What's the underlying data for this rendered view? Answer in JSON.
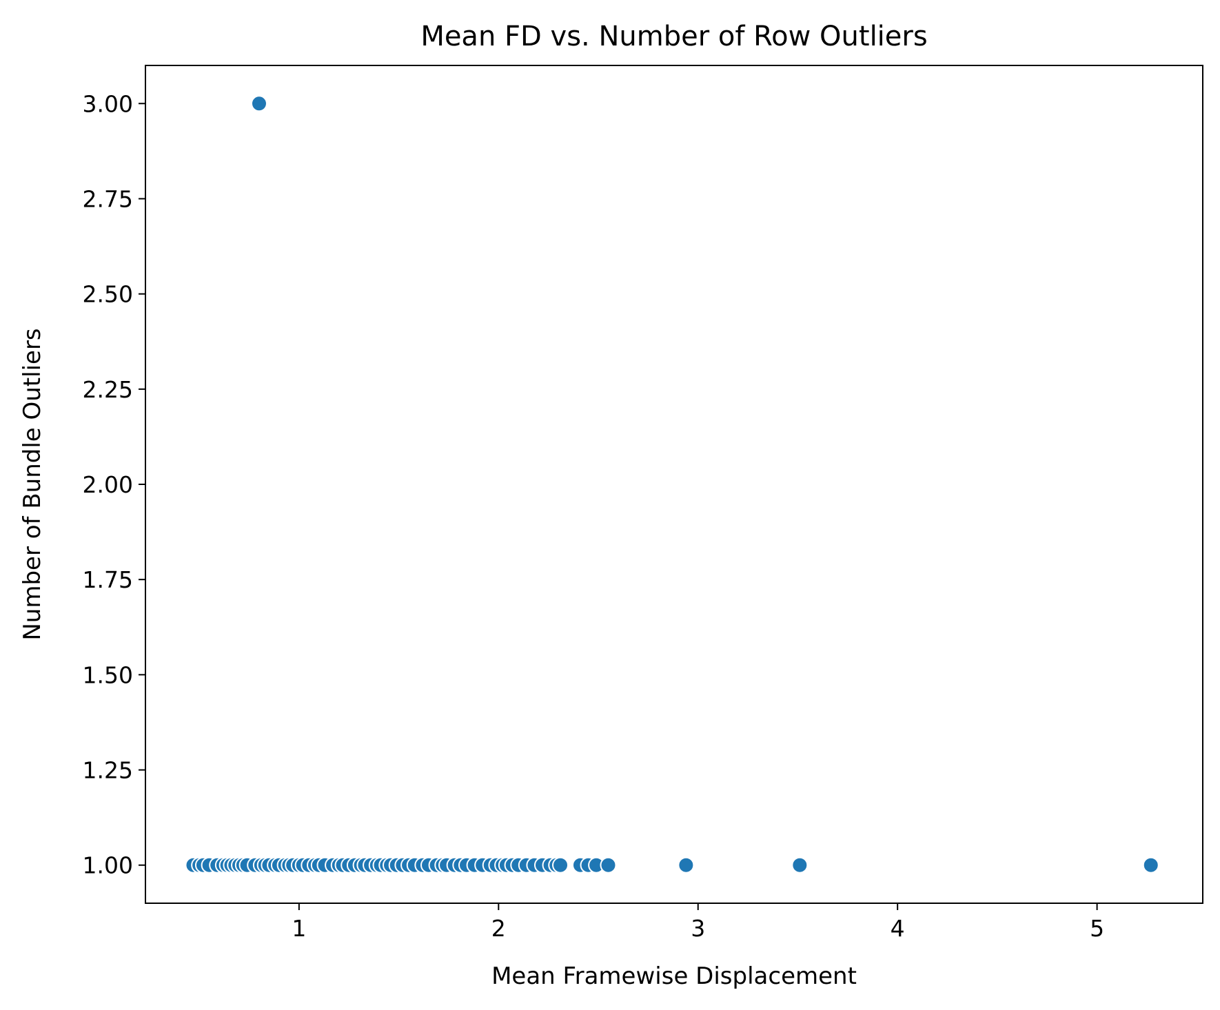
{
  "chart_data": {
    "type": "scatter",
    "title": "Mean FD vs. Number of Row Outliers",
    "xlabel": "Mean Framewise Displacement",
    "ylabel": "Number of Bundle Outliers",
    "xlim": [
      0.23,
      5.53
    ],
    "ylim": [
      0.9,
      3.1
    ],
    "xticks": [
      1,
      2,
      3,
      4,
      5
    ],
    "xtick_labels": [
      "1",
      "2",
      "3",
      "4",
      "5"
    ],
    "yticks": [
      1.0,
      1.25,
      1.5,
      1.75,
      2.0,
      2.25,
      2.5,
      2.75,
      3.0
    ],
    "ytick_labels": [
      "1.00",
      "1.25",
      "1.50",
      "1.75",
      "2.00",
      "2.25",
      "2.50",
      "2.75",
      "3.00"
    ],
    "grid": false,
    "legend": "none",
    "marker_color": "#1f77b4",
    "edge_color": "#ffffff",
    "series": [
      {
        "x": [
          0.8,
          0.47,
          0.5,
          0.52,
          0.55,
          0.59,
          0.62,
          0.64,
          0.66,
          0.68,
          0.7,
          0.72,
          0.74,
          0.78,
          0.81,
          0.83,
          0.85,
          0.88,
          0.9,
          0.93,
          0.95,
          0.97,
          1.0,
          1.02,
          1.05,
          1.08,
          1.1,
          1.13,
          1.17,
          1.2,
          1.22,
          1.25,
          1.28,
          1.31,
          1.33,
          1.36,
          1.39,
          1.41,
          1.44,
          1.46,
          1.49,
          1.52,
          1.55,
          1.58,
          1.62,
          1.65,
          1.69,
          1.72,
          1.74,
          1.78,
          1.81,
          1.84,
          1.88,
          1.92,
          1.96,
          1.99,
          2.02,
          2.04,
          2.07,
          2.1,
          2.14,
          2.18,
          2.22,
          2.26,
          2.29,
          2.31,
          2.41,
          2.45,
          2.49,
          2.55,
          2.94,
          3.51,
          5.27
        ],
        "y": [
          3,
          1,
          1,
          1,
          1,
          1,
          1,
          1,
          1,
          1,
          1,
          1,
          1,
          1,
          1,
          1,
          1,
          1,
          1,
          1,
          1,
          1,
          1,
          1,
          1,
          1,
          1,
          1,
          1,
          1,
          1,
          1,
          1,
          1,
          1,
          1,
          1,
          1,
          1,
          1,
          1,
          1,
          1,
          1,
          1,
          1,
          1,
          1,
          1,
          1,
          1,
          1,
          1,
          1,
          1,
          1,
          1,
          1,
          1,
          1,
          1,
          1,
          1,
          1,
          1,
          1,
          1,
          1,
          1,
          1,
          1,
          1,
          1
        ]
      }
    ]
  }
}
